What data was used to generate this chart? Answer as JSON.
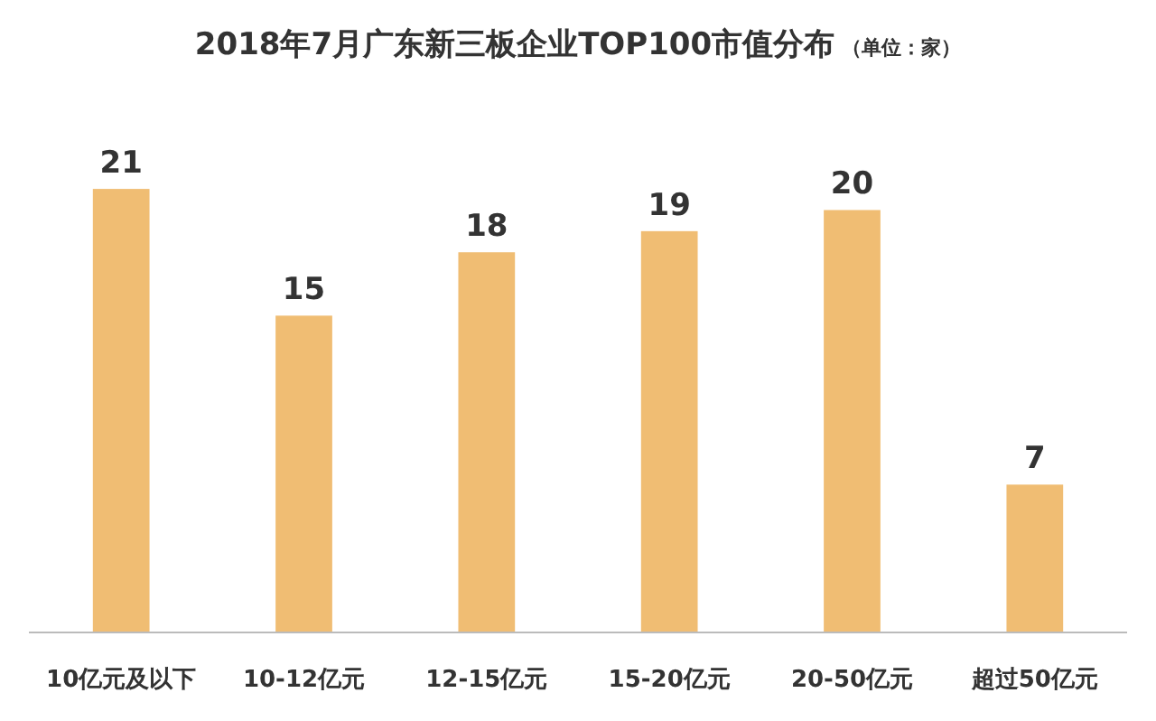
{
  "chart_data": {
    "type": "bar",
    "title": "2018年7月广东新三板企业TOP100市值分布",
    "subtitle": "（单位：家）",
    "categories": [
      "10亿元及以下",
      "10-12亿元",
      "12-15亿元",
      "15-20亿元",
      "20-50亿元",
      "超过50亿元"
    ],
    "values": [
      21,
      15,
      18,
      19,
      20,
      7
    ],
    "color": "#f0bd73",
    "data_labels": true
  }
}
